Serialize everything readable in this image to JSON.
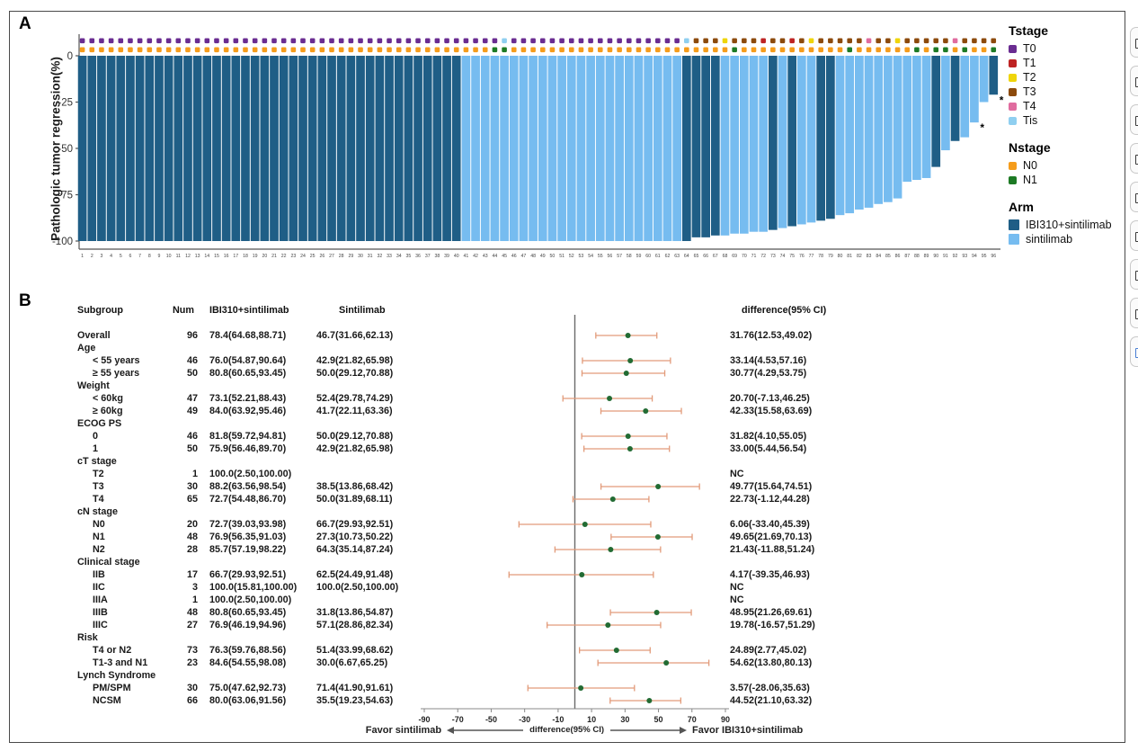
{
  "panels": {
    "a_label": "A",
    "b_label": "B"
  },
  "colors": {
    "arm_dark": "#1F5E86",
    "arm_light": "#76BCF0",
    "tstage": {
      "T0": "#6A2C91",
      "T1": "#BE2323",
      "T2": "#EFD50A",
      "T3": "#8C4A0C",
      "T4": "#E06C9F",
      "Tis": "#8FCFF0"
    },
    "nstage": {
      "N0": "#F59C1B",
      "N1": "#1D7A24"
    },
    "ci_line": "#E29B7A",
    "point": "#226B33",
    "zero_line": "#6a6a6a",
    "axis": "#555555"
  },
  "panel_a": {
    "y_axis_label": "Pathologic tumor regression(%)",
    "y_ticks": [
      0,
      -25,
      -50,
      -75,
      -100
    ],
    "legend": {
      "tstage_title": "Tstage",
      "tstage_items": [
        "T0",
        "T1",
        "T2",
        "T3",
        "T4",
        "Tis"
      ],
      "nstage_title": "Nstage",
      "nstage_items": [
        "N0",
        "N1"
      ],
      "arm_title": "Arm",
      "arm_items": [
        "IBI310+sintilimab",
        "sintilimab"
      ]
    }
  },
  "chart_data": [
    {
      "type": "bar",
      "name": "waterfall-pathologic-tumor-regression",
      "ylabel": "Pathologic tumor regression(%)",
      "ylim": [
        -100,
        0
      ],
      "n_bars": 96,
      "x_labels_range": [
        1,
        96
      ],
      "values": [
        -100,
        -100,
        -100,
        -100,
        -100,
        -100,
        -100,
        -100,
        -100,
        -100,
        -100,
        -100,
        -100,
        -100,
        -100,
        -100,
        -100,
        -100,
        -100,
        -100,
        -100,
        -100,
        -100,
        -100,
        -100,
        -100,
        -100,
        -100,
        -100,
        -100,
        -100,
        -100,
        -100,
        -100,
        -100,
        -100,
        -100,
        -100,
        -100,
        -100,
        -100,
        -100,
        -100,
        -100,
        -100,
        -100,
        -100,
        -100,
        -100,
        -100,
        -100,
        -100,
        -100,
        -100,
        -100,
        -100,
        -100,
        -100,
        -100,
        -100,
        -100,
        -100,
        -100,
        -100,
        -98,
        -98,
        -97,
        -97,
        -96,
        -96,
        -95,
        -95,
        -94,
        -93,
        -92,
        -91,
        -90,
        -89,
        -88,
        -86,
        -85,
        -83,
        -82,
        -80,
        -79,
        -77,
        -68,
        -67,
        -66,
        -60,
        -51,
        -46,
        -44,
        -36,
        -25,
        -21
      ],
      "arm_dark_ranges": [
        [
          1,
          40
        ],
        [
          64,
          67
        ],
        [
          73,
          73
        ],
        [
          75,
          75
        ],
        [
          78,
          79
        ],
        [
          90,
          90
        ],
        [
          92,
          92
        ],
        [
          96,
          96
        ]
      ],
      "arm_dark_label": "IBI310+sintilimab",
      "arm_light_label": "sintilimab",
      "tstage_default": "T0",
      "tstage_overrides": {
        "45": "Tis",
        "64": "Tis",
        "65": "T3",
        "66": "T3",
        "67": "T3",
        "68": "T2",
        "69": "T3",
        "70": "T3",
        "71": "T3",
        "72": "T1",
        "73": "T3",
        "74": "T3",
        "75": "T1",
        "76": "T3",
        "77": "T2",
        "78": "T3",
        "79": "T3",
        "80": "T3",
        "81": "T3",
        "82": "T3",
        "83": "T4",
        "84": "T3",
        "85": "T3",
        "86": "T2",
        "87": "T3",
        "88": "T3",
        "89": "T3",
        "90": "T3",
        "91": "T3",
        "92": "T4",
        "93": "T3",
        "94": "T3",
        "95": "T3",
        "96": "T3"
      },
      "nstage_default": "N0",
      "n1_bars": [
        44,
        45,
        69,
        81,
        88,
        90,
        91,
        93,
        96
      ],
      "starred_bars": [
        94,
        96
      ]
    },
    {
      "type": "scatter",
      "name": "forest-subgroup-difference",
      "xlabel": "difference(95% CI)",
      "xlim": [
        -90,
        90
      ],
      "x_ticks": [
        -90,
        -70,
        -50,
        -30,
        -10,
        10,
        30,
        50,
        70,
        90
      ],
      "favor_left": "Favor sintilimab",
      "favor_right": "Favor IBI310+sintilimab",
      "points": [
        {
          "subgroup": "Overall",
          "est": 31.76,
          "lo": 12.53,
          "hi": 49.02
        },
        {
          "subgroup": "< 55 years",
          "est": 33.14,
          "lo": 4.53,
          "hi": 57.16
        },
        {
          "subgroup": "≥ 55 years",
          "est": 30.77,
          "lo": 4.29,
          "hi": 53.75
        },
        {
          "subgroup": "< 60kg",
          "est": 20.7,
          "lo": -7.13,
          "hi": 46.25
        },
        {
          "subgroup": "≥ 60kg",
          "est": 42.33,
          "lo": 15.58,
          "hi": 63.69
        },
        {
          "subgroup": "ECOG PS 0",
          "est": 31.82,
          "lo": 4.1,
          "hi": 55.05
        },
        {
          "subgroup": "ECOG PS 1",
          "est": 33.0,
          "lo": 5.44,
          "hi": 56.54
        },
        {
          "subgroup": "T2",
          "est": null,
          "lo": null,
          "hi": null
        },
        {
          "subgroup": "T3",
          "est": 49.77,
          "lo": 15.64,
          "hi": 74.51
        },
        {
          "subgroup": "T4",
          "est": 22.73,
          "lo": -1.12,
          "hi": 44.28
        },
        {
          "subgroup": "N0",
          "est": 6.06,
          "lo": -33.4,
          "hi": 45.39
        },
        {
          "subgroup": "N1",
          "est": 49.65,
          "lo": 21.69,
          "hi": 70.13
        },
        {
          "subgroup": "N2",
          "est": 21.43,
          "lo": -11.88,
          "hi": 51.24
        },
        {
          "subgroup": "IIB",
          "est": 4.17,
          "lo": -39.35,
          "hi": 46.93
        },
        {
          "subgroup": "IIC",
          "est": null,
          "lo": null,
          "hi": null
        },
        {
          "subgroup": "IIIA",
          "est": null,
          "lo": null,
          "hi": null
        },
        {
          "subgroup": "IIIB",
          "est": 48.95,
          "lo": 21.26,
          "hi": 69.61
        },
        {
          "subgroup": "IIIC",
          "est": 19.78,
          "lo": -16.57,
          "hi": 51.29
        },
        {
          "subgroup": "T4 or N2",
          "est": 24.89,
          "lo": 2.77,
          "hi": 45.02
        },
        {
          "subgroup": "T1-3 and N1",
          "est": 54.62,
          "lo": 13.8,
          "hi": 80.13
        },
        {
          "subgroup": "PM/SPM",
          "est": 3.57,
          "lo": -28.06,
          "hi": 35.63
        },
        {
          "subgroup": "NCSM",
          "est": 44.52,
          "lo": 21.1,
          "hi": 63.32
        }
      ]
    }
  ],
  "panel_b": {
    "headers": {
      "subgroup": "Subgroup",
      "num": "Num",
      "arm1": "IBI310+sintilimab",
      "arm2": "Sintilimab",
      "diff": "difference(95% CI)"
    },
    "rows": [
      {
        "type": "item",
        "label": "Overall",
        "indent": 0,
        "num": "96",
        "arm1": "78.4(64.68,88.71)",
        "arm2": "46.7(31.66,62.13)",
        "diff": "31.76(12.53,49.02)",
        "est": 31.76,
        "lo": 12.53,
        "hi": 49.02
      },
      {
        "type": "group",
        "label": "Age"
      },
      {
        "type": "item",
        "label": "< 55 years",
        "indent": 1,
        "num": "46",
        "arm1": "76.0(54.87,90.64)",
        "arm2": "42.9(21.82,65.98)",
        "diff": "33.14(4.53,57.16)",
        "est": 33.14,
        "lo": 4.53,
        "hi": 57.16
      },
      {
        "type": "item",
        "label": "≥ 55 years",
        "indent": 1,
        "num": "50",
        "arm1": "80.8(60.65,93.45)",
        "arm2": "50.0(29.12,70.88)",
        "diff": "30.77(4.29,53.75)",
        "est": 30.77,
        "lo": 4.29,
        "hi": 53.75
      },
      {
        "type": "group",
        "label": "Weight"
      },
      {
        "type": "item",
        "label": "< 60kg",
        "indent": 1,
        "num": "47",
        "arm1": "73.1(52.21,88.43)",
        "arm2": "52.4(29.78,74.29)",
        "diff": "20.70(-7.13,46.25)",
        "est": 20.7,
        "lo": -7.13,
        "hi": 46.25
      },
      {
        "type": "item",
        "label": "≥ 60kg",
        "indent": 1,
        "num": "49",
        "arm1": "84.0(63.92,95.46)",
        "arm2": "41.7(22.11,63.36)",
        "diff": "42.33(15.58,63.69)",
        "est": 42.33,
        "lo": 15.58,
        "hi": 63.69
      },
      {
        "type": "group",
        "label": "ECOG PS"
      },
      {
        "type": "item",
        "label": "0",
        "indent": 1,
        "num": "46",
        "arm1": "81.8(59.72,94.81)",
        "arm2": "50.0(29.12,70.88)",
        "diff": "31.82(4.10,55.05)",
        "est": 31.82,
        "lo": 4.1,
        "hi": 55.05
      },
      {
        "type": "item",
        "label": "1",
        "indent": 1,
        "num": "50",
        "arm1": "75.9(56.46,89.70)",
        "arm2": "42.9(21.82,65.98)",
        "diff": "33.00(5.44,56.54)",
        "est": 33.0,
        "lo": 5.44,
        "hi": 56.54
      },
      {
        "type": "group",
        "label": "cT stage"
      },
      {
        "type": "item",
        "label": "T2",
        "indent": 1,
        "num": "1",
        "arm1": "100.0(2.50,100.00)",
        "arm2": "",
        "diff": "NC",
        "est": null,
        "lo": null,
        "hi": null
      },
      {
        "type": "item",
        "label": "T3",
        "indent": 1,
        "num": "30",
        "arm1": "88.2(63.56,98.54)",
        "arm2": "38.5(13.86,68.42)",
        "diff": "49.77(15.64,74.51)",
        "est": 49.77,
        "lo": 15.64,
        "hi": 74.51
      },
      {
        "type": "item",
        "label": "T4",
        "indent": 1,
        "num": "65",
        "arm1": "72.7(54.48,86.70)",
        "arm2": "50.0(31.89,68.11)",
        "diff": "22.73(-1.12,44.28)",
        "est": 22.73,
        "lo": -1.12,
        "hi": 44.28
      },
      {
        "type": "group",
        "label": "cN stage"
      },
      {
        "type": "item",
        "label": "N0",
        "indent": 1,
        "num": "20",
        "arm1": "72.7(39.03,93.98)",
        "arm2": "66.7(29.93,92.51)",
        "diff": "6.06(-33.40,45.39)",
        "est": 6.06,
        "lo": -33.4,
        "hi": 45.39
      },
      {
        "type": "item",
        "label": "N1",
        "indent": 1,
        "num": "48",
        "arm1": "76.9(56.35,91.03)",
        "arm2": "27.3(10.73,50.22)",
        "diff": "49.65(21.69,70.13)",
        "est": 49.65,
        "lo": 21.69,
        "hi": 70.13
      },
      {
        "type": "item",
        "label": "N2",
        "indent": 1,
        "num": "28",
        "arm1": "85.7(57.19,98.22)",
        "arm2": "64.3(35.14,87.24)",
        "diff": "21.43(-11.88,51.24)",
        "est": 21.43,
        "lo": -11.88,
        "hi": 51.24
      },
      {
        "type": "group",
        "label": "Clinical stage"
      },
      {
        "type": "item",
        "label": "IIB",
        "indent": 1,
        "num": "17",
        "arm1": "66.7(29.93,92.51)",
        "arm2": "62.5(24.49,91.48)",
        "diff": "4.17(-39.35,46.93)",
        "est": 4.17,
        "lo": -39.35,
        "hi": 46.93
      },
      {
        "type": "item",
        "label": "IIC",
        "indent": 1,
        "num": "3",
        "arm1": "100.0(15.81,100.00)",
        "arm2": "100.0(2.50,100.00)",
        "diff": "NC",
        "est": null,
        "lo": null,
        "hi": null
      },
      {
        "type": "item",
        "label": "IIIA",
        "indent": 1,
        "num": "1",
        "arm1": "100.0(2.50,100.00)",
        "arm2": "",
        "diff": "NC",
        "est": null,
        "lo": null,
        "hi": null
      },
      {
        "type": "item",
        "label": "IIIB",
        "indent": 1,
        "num": "48",
        "arm1": "80.8(60.65,93.45)",
        "arm2": "31.8(13.86,54.87)",
        "diff": "48.95(21.26,69.61)",
        "est": 48.95,
        "lo": 21.26,
        "hi": 69.61
      },
      {
        "type": "item",
        "label": "IIIC",
        "indent": 1,
        "num": "27",
        "arm1": "76.9(46.19,94.96)",
        "arm2": "57.1(28.86,82.34)",
        "diff": "19.78(-16.57,51.29)",
        "est": 19.78,
        "lo": -16.57,
        "hi": 51.29
      },
      {
        "type": "group",
        "label": "Risk"
      },
      {
        "type": "item",
        "label": "T4 or N2",
        "indent": 1,
        "num": "73",
        "arm1": "76.3(59.76,88.56)",
        "arm2": "51.4(33.99,68.62)",
        "diff": "24.89(2.77,45.02)",
        "est": 24.89,
        "lo": 2.77,
        "hi": 45.02
      },
      {
        "type": "item",
        "label": "T1-3 and N1",
        "indent": 1,
        "num": "23",
        "arm1": "84.6(54.55,98.08)",
        "arm2": "30.0(6.67,65.25)",
        "diff": "54.62(13.80,80.13)",
        "est": 54.62,
        "lo": 13.8,
        "hi": 80.13
      },
      {
        "type": "group",
        "label": "Lynch  Syndrome"
      },
      {
        "type": "item",
        "label": "PM/SPM",
        "indent": 1,
        "num": "30",
        "arm1": "75.0(47.62,92.73)",
        "arm2": "71.4(41.90,91.61)",
        "diff": "3.57(-28.06,35.63)",
        "est": 3.57,
        "lo": -28.06,
        "hi": 35.63
      },
      {
        "type": "item",
        "label": "NCSM",
        "indent": 1,
        "num": "66",
        "arm1": "80.0(63.06,91.56)",
        "arm2": "35.5(19.23,54.63)",
        "diff": "44.52(21.10,63.32)",
        "est": 44.52,
        "lo": 21.1,
        "hi": 63.32
      }
    ],
    "axis": {
      "ticks": [
        -90,
        -70,
        -50,
        -30,
        -10,
        10,
        30,
        50,
        70,
        90
      ],
      "label": "difference(95% CI)",
      "favor_left": "Favor sintilimab",
      "favor_right": "Favor IBI310+sintilimab"
    }
  },
  "side_toolbar": {
    "button_count": 9
  }
}
